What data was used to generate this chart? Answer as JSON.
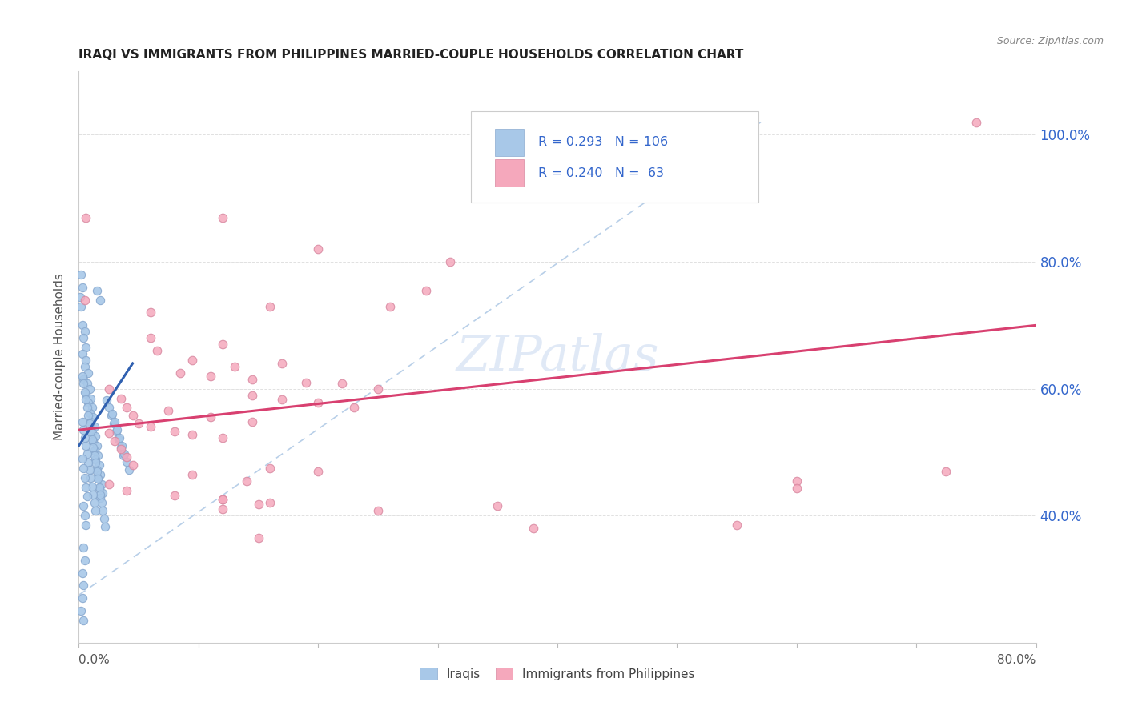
{
  "title": "IRAQI VS IMMIGRANTS FROM PHILIPPINES MARRIED-COUPLE HOUSEHOLDS CORRELATION CHART",
  "source": "Source: ZipAtlas.com",
  "ylabel": "Married-couple Households",
  "xlim": [
    0.0,
    0.8
  ],
  "ylim": [
    0.2,
    1.1
  ],
  "legend_blue_R": "0.293",
  "legend_blue_N": "106",
  "legend_pink_R": "0.240",
  "legend_pink_N": " 63",
  "legend_label_blue": "Iraqis",
  "legend_label_pink": "Immigrants from Philippines",
  "blue_color": "#a8c8e8",
  "pink_color": "#f5a8bc",
  "trendline_blue_color": "#3060b0",
  "trendline_pink_color": "#d84070",
  "dashed_line_color": "#b8cfe8",
  "watermark": "ZIPatlas",
  "trendline_blue": [
    0.0,
    0.045,
    0.51,
    0.64
  ],
  "trendline_pink": [
    0.0,
    0.8,
    0.535,
    0.7
  ],
  "dashed_line": [
    0.0,
    0.57,
    0.275,
    1.02
  ],
  "background_color": "#ffffff",
  "grid_color": "#dddddd",
  "title_color": "#222222",
  "axis_label_color": "#555555",
  "right_ytick_color": "#3366cc",
  "yticks": [
    0.4,
    0.6,
    0.8,
    1.0
  ],
  "ytick_labels": [
    "40.0%",
    "60.0%",
    "80.0%",
    "100.0%"
  ],
  "xticks": [
    0.0,
    0.1,
    0.2,
    0.3,
    0.4,
    0.5,
    0.6,
    0.7,
    0.8
  ],
  "blue_pts": [
    [
      0.002,
      0.78
    ],
    [
      0.003,
      0.76
    ],
    [
      0.001,
      0.745
    ],
    [
      0.002,
      0.73
    ],
    [
      0.015,
      0.755
    ],
    [
      0.018,
      0.74
    ],
    [
      0.003,
      0.7
    ],
    [
      0.005,
      0.69
    ],
    [
      0.004,
      0.68
    ],
    [
      0.006,
      0.665
    ],
    [
      0.003,
      0.655
    ],
    [
      0.006,
      0.645
    ],
    [
      0.005,
      0.635
    ],
    [
      0.008,
      0.625
    ],
    [
      0.004,
      0.615
    ],
    [
      0.007,
      0.608
    ],
    [
      0.009,
      0.6
    ],
    [
      0.006,
      0.592
    ],
    [
      0.01,
      0.585
    ],
    [
      0.008,
      0.578
    ],
    [
      0.011,
      0.57
    ],
    [
      0.009,
      0.562
    ],
    [
      0.012,
      0.555
    ],
    [
      0.01,
      0.548
    ],
    [
      0.013,
      0.54
    ],
    [
      0.011,
      0.532
    ],
    [
      0.014,
      0.525
    ],
    [
      0.012,
      0.518
    ],
    [
      0.015,
      0.51
    ],
    [
      0.013,
      0.502
    ],
    [
      0.016,
      0.495
    ],
    [
      0.014,
      0.488
    ],
    [
      0.017,
      0.48
    ],
    [
      0.015,
      0.472
    ],
    [
      0.018,
      0.465
    ],
    [
      0.016,
      0.458
    ],
    [
      0.019,
      0.45
    ],
    [
      0.017,
      0.443
    ],
    [
      0.02,
      0.436
    ],
    [
      0.018,
      0.428
    ],
    [
      0.003,
      0.62
    ],
    [
      0.004,
      0.608
    ],
    [
      0.005,
      0.595
    ],
    [
      0.006,
      0.583
    ],
    [
      0.007,
      0.57
    ],
    [
      0.008,
      0.558
    ],
    [
      0.009,
      0.545
    ],
    [
      0.01,
      0.533
    ],
    [
      0.011,
      0.52
    ],
    [
      0.012,
      0.508
    ],
    [
      0.013,
      0.495
    ],
    [
      0.014,
      0.483
    ],
    [
      0.015,
      0.47
    ],
    [
      0.016,
      0.458
    ],
    [
      0.017,
      0.445
    ],
    [
      0.018,
      0.433
    ],
    [
      0.019,
      0.42
    ],
    [
      0.02,
      0.408
    ],
    [
      0.021,
      0.395
    ],
    [
      0.022,
      0.383
    ],
    [
      0.023,
      0.582
    ],
    [
      0.025,
      0.57
    ],
    [
      0.027,
      0.558
    ],
    [
      0.029,
      0.545
    ],
    [
      0.031,
      0.533
    ],
    [
      0.033,
      0.52
    ],
    [
      0.035,
      0.508
    ],
    [
      0.037,
      0.495
    ],
    [
      0.028,
      0.56
    ],
    [
      0.03,
      0.548
    ],
    [
      0.032,
      0.535
    ],
    [
      0.034,
      0.522
    ],
    [
      0.036,
      0.51
    ],
    [
      0.038,
      0.498
    ],
    [
      0.04,
      0.485
    ],
    [
      0.042,
      0.472
    ],
    [
      0.003,
      0.548
    ],
    [
      0.004,
      0.535
    ],
    [
      0.005,
      0.522
    ],
    [
      0.006,
      0.51
    ],
    [
      0.007,
      0.497
    ],
    [
      0.008,
      0.484
    ],
    [
      0.009,
      0.472
    ],
    [
      0.01,
      0.459
    ],
    [
      0.011,
      0.446
    ],
    [
      0.012,
      0.433
    ],
    [
      0.013,
      0.42
    ],
    [
      0.014,
      0.408
    ],
    [
      0.003,
      0.49
    ],
    [
      0.004,
      0.475
    ],
    [
      0.005,
      0.46
    ],
    [
      0.006,
      0.445
    ],
    [
      0.007,
      0.43
    ],
    [
      0.004,
      0.415
    ],
    [
      0.005,
      0.4
    ],
    [
      0.006,
      0.385
    ],
    [
      0.004,
      0.35
    ],
    [
      0.005,
      0.33
    ],
    [
      0.003,
      0.31
    ],
    [
      0.004,
      0.29
    ],
    [
      0.003,
      0.27
    ],
    [
      0.002,
      0.25
    ],
    [
      0.004,
      0.235
    ]
  ],
  "pink_pts": [
    [
      0.75,
      1.02
    ],
    [
      0.006,
      0.87
    ],
    [
      0.12,
      0.87
    ],
    [
      0.2,
      0.82
    ],
    [
      0.31,
      0.8
    ],
    [
      0.29,
      0.755
    ],
    [
      0.005,
      0.74
    ],
    [
      0.16,
      0.73
    ],
    [
      0.06,
      0.72
    ],
    [
      0.26,
      0.73
    ],
    [
      0.06,
      0.68
    ],
    [
      0.12,
      0.67
    ],
    [
      0.065,
      0.66
    ],
    [
      0.095,
      0.645
    ],
    [
      0.13,
      0.635
    ],
    [
      0.17,
      0.64
    ],
    [
      0.085,
      0.625
    ],
    [
      0.11,
      0.62
    ],
    [
      0.145,
      0.615
    ],
    [
      0.19,
      0.61
    ],
    [
      0.22,
      0.608
    ],
    [
      0.25,
      0.6
    ],
    [
      0.145,
      0.59
    ],
    [
      0.17,
      0.583
    ],
    [
      0.2,
      0.578
    ],
    [
      0.23,
      0.57
    ],
    [
      0.075,
      0.565
    ],
    [
      0.11,
      0.555
    ],
    [
      0.145,
      0.548
    ],
    [
      0.06,
      0.54
    ],
    [
      0.08,
      0.533
    ],
    [
      0.095,
      0.528
    ],
    [
      0.12,
      0.522
    ],
    [
      0.025,
      0.6
    ],
    [
      0.035,
      0.585
    ],
    [
      0.04,
      0.57
    ],
    [
      0.045,
      0.558
    ],
    [
      0.05,
      0.545
    ],
    [
      0.025,
      0.53
    ],
    [
      0.03,
      0.518
    ],
    [
      0.035,
      0.505
    ],
    [
      0.04,
      0.492
    ],
    [
      0.045,
      0.48
    ],
    [
      0.16,
      0.475
    ],
    [
      0.2,
      0.47
    ],
    [
      0.095,
      0.465
    ],
    [
      0.14,
      0.455
    ],
    [
      0.025,
      0.45
    ],
    [
      0.04,
      0.44
    ],
    [
      0.08,
      0.432
    ],
    [
      0.12,
      0.425
    ],
    [
      0.15,
      0.418
    ],
    [
      0.16,
      0.42
    ],
    [
      0.35,
      0.415
    ],
    [
      0.12,
      0.41
    ],
    [
      0.25,
      0.408
    ],
    [
      0.15,
      0.365
    ],
    [
      0.12,
      0.425
    ],
    [
      0.55,
      0.385
    ],
    [
      0.6,
      0.455
    ],
    [
      0.725,
      0.47
    ],
    [
      0.6,
      0.443
    ],
    [
      0.38,
      0.38
    ]
  ]
}
